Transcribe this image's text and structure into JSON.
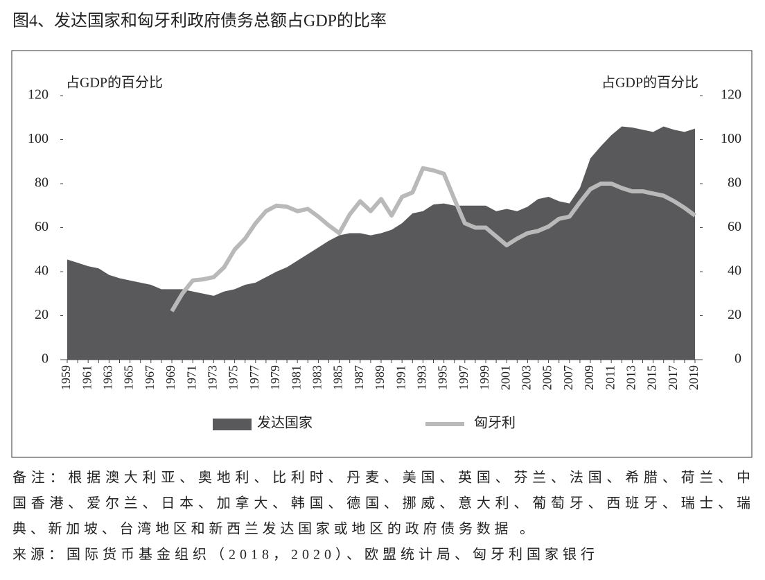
{
  "chart_data": {
    "type": "area-line",
    "title": "图4、发达国家和匈牙利政府债务总额占GDP的比率",
    "y_label": "占GDP的百分比",
    "y2_label": "占GDP的百分比",
    "categories": [
      "1959",
      null,
      "1961",
      null,
      "1963",
      null,
      "1965",
      null,
      "1967",
      null,
      "1969",
      null,
      "1971",
      null,
      "1973",
      null,
      "1975",
      null,
      "1977",
      null,
      "1979",
      null,
      "1981",
      null,
      "1983",
      null,
      "1985",
      null,
      "1987",
      null,
      "1989",
      null,
      "1991",
      null,
      "1993",
      null,
      "1995",
      null,
      "1997",
      null,
      "1999",
      null,
      "2001",
      null,
      "2003",
      null,
      "2005",
      null,
      "2007",
      null,
      "2009",
      null,
      "2011",
      null,
      "2013",
      null,
      "2015",
      null,
      "2017",
      null,
      "2019"
    ],
    "series": [
      {
        "name": "发达国家",
        "color": "#59595b",
        "kind": "area",
        "values": [
          45.5,
          44,
          42.5,
          41.5,
          38.5,
          37,
          36,
          35,
          34,
          32,
          32,
          32,
          31,
          30,
          29,
          31,
          32,
          34,
          35,
          37.5,
          40,
          42,
          45,
          48,
          51,
          54,
          56.5,
          57.5,
          57.5,
          56.5,
          57.5,
          59,
          62,
          66.5,
          67.5,
          70.5,
          71,
          70,
          70,
          70,
          70,
          67.5,
          68.5,
          67.5,
          69.5,
          73,
          74,
          72,
          71,
          78,
          91.5,
          97,
          102,
          106,
          105.5,
          104.5,
          103.5,
          106,
          104.5,
          103.5,
          105
        ]
      },
      {
        "name": "匈牙利",
        "color": "#b9b9b9",
        "kind": "line",
        "axis": "y2",
        "values": [
          null,
          null,
          null,
          null,
          null,
          null,
          null,
          null,
          null,
          null,
          22,
          30,
          36,
          36.5,
          37.5,
          42,
          50,
          55,
          62,
          67.5,
          70,
          69.5,
          67.5,
          68.5,
          65,
          61,
          57.5,
          66,
          72,
          67.5,
          73,
          65.5,
          74,
          76,
          87,
          86,
          84.5,
          73,
          62,
          60,
          60,
          56,
          52,
          55,
          57.5,
          58.5,
          60.5,
          64,
          65,
          71.5,
          77.5,
          80,
          80,
          78,
          76.5,
          76.5,
          75.5,
          74.5,
          72,
          69,
          65.5
        ]
      }
    ],
    "ylim": [
      0,
      120
    ],
    "yticks": [
      0,
      20,
      40,
      60,
      80,
      100,
      120
    ],
    "y2lim": [
      0,
      120
    ],
    "y2ticks": [
      0,
      20,
      40,
      60,
      80,
      100,
      120
    ],
    "notes": [
      "备注：根据澳大利亚、奥地利、比利时、丹麦、美国、英国、芬兰、法国、希腊、荷兰、中",
      "国香港、爱尔兰、日本、加拿大、韩国、德国、挪威、意大利、葡萄牙、西班牙、瑞士、瑞",
      "典、新加坡、台湾地区和新西兰发达国家或地区的政府债务数据 。"
    ],
    "source": "来源：国际货币基金组织（2018，2020）、欧盟统计局、匈牙利国家银行"
  }
}
